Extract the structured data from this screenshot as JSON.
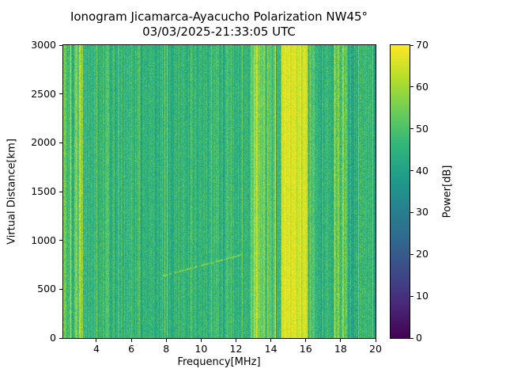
{
  "chart_data": {
    "type": "heatmap",
    "title": "Ionogram Jicamarca-Ayacucho Polarization NW45°",
    "subtitle": "03/03/2025-21:33:05 UTC",
    "xlabel": "Frequency[MHz]",
    "ylabel": "Virtual Distance[km]",
    "colorbar_label": "Power[dB]",
    "x_range": [
      2.1,
      20
    ],
    "y_range": [
      0,
      3000
    ],
    "power_range": [
      0,
      70
    ],
    "x_ticks": [
      4,
      6,
      8,
      10,
      12,
      14,
      16,
      18,
      20
    ],
    "y_ticks": [
      0,
      500,
      1000,
      1500,
      2000,
      2500,
      3000
    ],
    "colorbar_ticks": [
      0,
      10,
      20,
      30,
      40,
      50,
      60,
      70
    ],
    "colormap": "viridis",
    "viridis_stops": [
      "#440154",
      "#482878",
      "#3e4989",
      "#31688e",
      "#26828e",
      "#1f9e89",
      "#35b779",
      "#6ece58",
      "#b5de2b",
      "#fde725"
    ],
    "background_power_db": 46,
    "bands": [
      {
        "f0": 2.1,
        "f1": 2.6,
        "base": 55,
        "stripe": 11,
        "noise": 6
      },
      {
        "f0": 2.6,
        "f1": 3.4,
        "base": 51,
        "stripe": 11,
        "noise": 6
      },
      {
        "f0": 3.4,
        "f1": 4.8,
        "base": 47,
        "stripe": 5,
        "noise": 5
      },
      {
        "f0": 4.8,
        "f1": 6.6,
        "base": 46,
        "stripe": 5,
        "noise": 5
      },
      {
        "f0": 6.6,
        "f1": 9.2,
        "base": 45,
        "stripe": 4,
        "noise": 5
      },
      {
        "f0": 9.2,
        "f1": 12.8,
        "base": 46,
        "stripe": 4,
        "noise": 5
      },
      {
        "f0": 12.8,
        "f1": 13.5,
        "base": 58,
        "stripe": 9,
        "noise": 5
      },
      {
        "f0": 13.5,
        "f1": 14.1,
        "base": 54,
        "stripe": 10,
        "noise": 5
      },
      {
        "f0": 14.1,
        "f1": 14.6,
        "base": 49,
        "stripe": 7,
        "noise": 5
      },
      {
        "f0": 14.6,
        "f1": 16.1,
        "base": 66,
        "stripe": 3,
        "noise": 3
      },
      {
        "f0": 16.1,
        "f1": 16.5,
        "base": 53,
        "stripe": 8,
        "noise": 5
      },
      {
        "f0": 16.5,
        "f1": 17.6,
        "base": 46,
        "stripe": 4,
        "noise": 5
      },
      {
        "f0": 17.6,
        "f1": 18.4,
        "base": 54,
        "stripe": 8,
        "noise": 6
      },
      {
        "f0": 18.4,
        "f1": 19.3,
        "base": 44,
        "stripe": 5,
        "noise": 6
      },
      {
        "f0": 19.3,
        "f1": 20.0,
        "base": 46,
        "stripe": 4,
        "noise": 5
      }
    ],
    "echo_trace": {
      "f_start": 7.8,
      "f_end": 12.4,
      "alt_start": 640,
      "alt_end": 860,
      "power": 56
    }
  }
}
